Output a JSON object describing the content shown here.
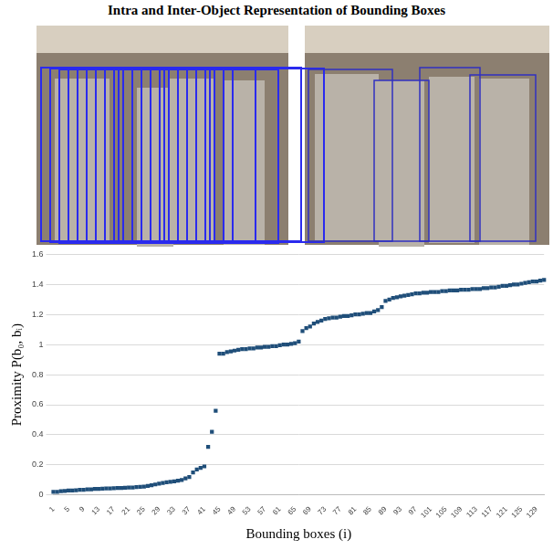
{
  "chart_data": {
    "type": "scatter",
    "title": "Intra and Inter-Object Representation of Bounding Boxes",
    "x_label": "Bounding boxes (i)",
    "y_label": "Proximity P(b₀, bᵢ)",
    "categories": [
      "1",
      null,
      null,
      null,
      "5",
      null,
      null,
      null,
      "9",
      null,
      null,
      null,
      "13",
      null,
      null,
      null,
      "17",
      null,
      null,
      null,
      "21",
      null,
      null,
      null,
      "25",
      null,
      null,
      null,
      "29",
      null,
      null,
      null,
      "33",
      null,
      null,
      null,
      "37",
      null,
      null,
      null,
      "41",
      null,
      null,
      null,
      "45",
      null,
      null,
      null,
      "49",
      null,
      null,
      null,
      "53",
      null,
      null,
      null,
      "57",
      null,
      null,
      null,
      "61",
      null,
      null,
      null,
      "65",
      null,
      null,
      null,
      "69",
      null,
      null,
      null,
      "73",
      null,
      null,
      null,
      "77",
      null,
      null,
      null,
      "81",
      null,
      null,
      null,
      "85",
      null,
      null,
      null,
      "89",
      null,
      null,
      null,
      "93",
      null,
      null,
      null,
      "97",
      null,
      null,
      null,
      "101",
      null,
      null,
      null,
      "105",
      null,
      null,
      null,
      "109",
      null,
      null,
      null,
      "113",
      null,
      null,
      null,
      "117",
      null,
      null,
      null,
      "121",
      null,
      null,
      null,
      "125",
      null,
      null,
      null,
      "129",
      null,
      null
    ],
    "values": [
      0.02,
      0.02,
      0.025,
      0.027,
      0.03,
      0.03,
      0.032,
      0.034,
      0.035,
      0.037,
      0.038,
      0.04,
      0.04,
      0.042,
      0.043,
      0.044,
      0.045,
      0.046,
      0.047,
      0.048,
      0.05,
      0.05,
      0.052,
      0.054,
      0.056,
      0.06,
      0.065,
      0.07,
      0.075,
      0.08,
      0.085,
      0.088,
      0.09,
      0.095,
      0.1,
      0.11,
      0.12,
      0.15,
      0.17,
      0.18,
      0.19,
      0.32,
      0.42,
      0.56,
      0.94,
      0.94,
      0.95,
      0.955,
      0.96,
      0.965,
      0.97,
      0.97,
      0.975,
      0.975,
      0.98,
      0.98,
      0.985,
      0.985,
      0.99,
      0.99,
      0.995,
      1.0,
      1.0,
      1.005,
      1.01,
      1.02,
      1.09,
      1.11,
      1.12,
      1.14,
      1.15,
      1.16,
      1.17,
      1.175,
      1.18,
      1.18,
      1.185,
      1.19,
      1.19,
      1.195,
      1.2,
      1.2,
      1.205,
      1.21,
      1.21,
      1.22,
      1.23,
      1.25,
      1.29,
      1.3,
      1.31,
      1.315,
      1.32,
      1.325,
      1.33,
      1.335,
      1.34,
      1.34,
      1.345,
      1.345,
      1.35,
      1.35,
      1.35,
      1.355,
      1.355,
      1.36,
      1.36,
      1.36,
      1.365,
      1.365,
      1.365,
      1.37,
      1.37,
      1.37,
      1.375,
      1.375,
      1.38,
      1.38,
      1.385,
      1.39,
      1.39,
      1.395,
      1.4,
      1.4,
      1.405,
      1.41,
      1.415,
      1.42,
      1.42,
      1.425,
      1.43
    ],
    "color": "#1f4e79",
    "marker": "square",
    "ylim": [
      0,
      1.6
    ],
    "yticks": [
      0,
      0.2,
      0.4,
      0.6,
      0.8,
      1,
      1.2,
      1.4,
      1.6
    ],
    "grid": true
  }
}
